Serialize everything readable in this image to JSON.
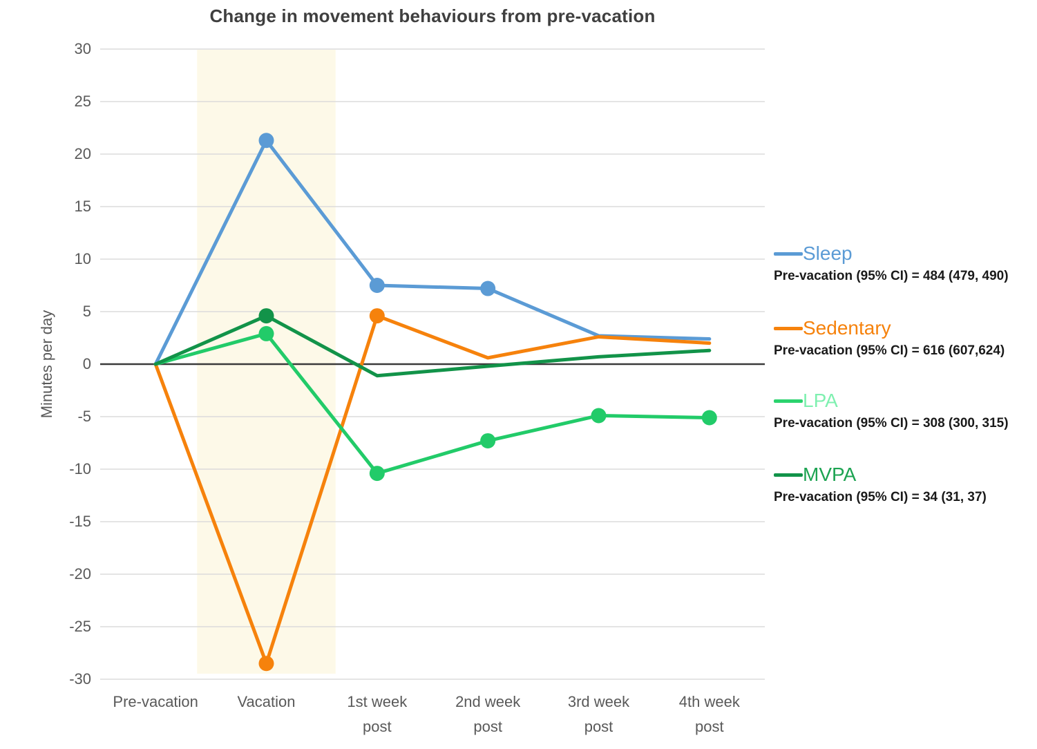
{
  "chart_data": {
    "type": "line",
    "title": "Change in movement behaviours from pre-vacation",
    "xlabel": "",
    "ylabel": "Minutes per day",
    "categories": [
      "Pre-vacation",
      "Vacation",
      "1st week\npost",
      "2nd week\npost",
      "3rd week\npost",
      "4th week\npost"
    ],
    "ylim": [
      -30,
      30
    ],
    "yticks": [
      30,
      25,
      20,
      15,
      10,
      5,
      0,
      -5,
      -10,
      -15,
      -20,
      -25,
      -30
    ],
    "grid": true,
    "zero_line": true,
    "legend_position": "right",
    "highlight_band": {
      "category_index": 1,
      "meaning": "vacation period",
      "color": "#FDF9E8"
    },
    "series": [
      {
        "name": "Sleep",
        "color": "#5B9BD5",
        "values": [
          0,
          21.3,
          7.5,
          7.2,
          2.7,
          2.4
        ],
        "marker_indices": [
          1,
          2,
          3
        ]
      },
      {
        "name": "Sedentary",
        "color": "#F6820C",
        "values": [
          0,
          -28.5,
          4.6,
          0.6,
          2.6,
          2.0
        ],
        "marker_indices": [
          1,
          2
        ]
      },
      {
        "name": "LPA",
        "color": "#22CB69",
        "values": [
          0,
          2.9,
          -10.4,
          -7.3,
          -4.9,
          -5.1
        ],
        "marker_indices": [
          1,
          2,
          3,
          4,
          5
        ]
      },
      {
        "name": "MVPA",
        "color": "#129349",
        "values": [
          0,
          4.6,
          -1.1,
          -0.2,
          0.7,
          1.3
        ],
        "marker_indices": [
          1
        ]
      }
    ]
  },
  "legend": {
    "items": [
      {
        "label": "Sleep",
        "label_color": "#5B9BD5",
        "swatch_color": "#5B9BD5",
        "ci": "Pre-vacation (95% CI) = 484 (479, 490)"
      },
      {
        "label": "Sedentary",
        "label_color": "#F6820C",
        "swatch_color": "#F6820C",
        "ci": "Pre-vacation (95% CI) = 616 (607,624)"
      },
      {
        "label": "LPA",
        "label_color": "#7FF0B0",
        "swatch_color": "#2BD36E",
        "ci": "Pre-vacation (95% CI) = 308 (300, 315)"
      },
      {
        "label": "MVPA",
        "label_color": "#1CA351",
        "swatch_color": "#129349",
        "ci": "Pre-vacation (95% CI) = 34 (31, 37)"
      }
    ]
  },
  "style": {
    "gridline_color": "#DBDBDB",
    "zero_line_color": "#3A3A3A",
    "title_color": "#3F3F3F",
    "axis_text_color": "#595959"
  }
}
